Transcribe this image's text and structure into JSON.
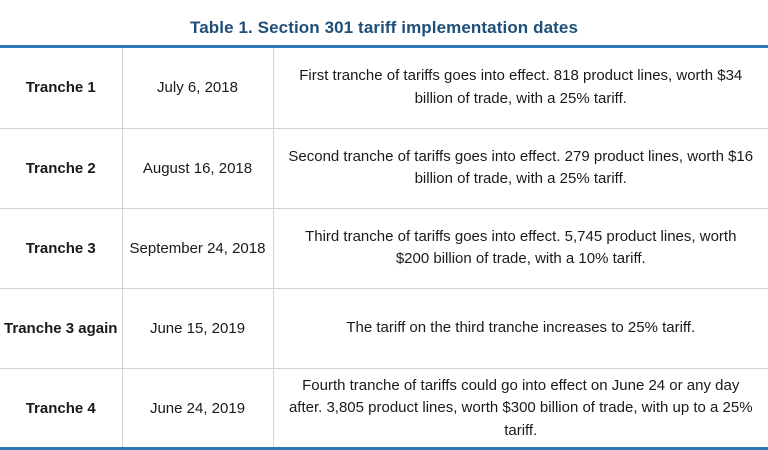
{
  "table": {
    "title": "Table 1. Section 301 tariff implementation dates",
    "colors": {
      "title_text": "#1F4E79",
      "tranche_label_text": "#2E75B6",
      "rule_blue": "#2E75B6",
      "grid_gray": "#D3D3D3"
    },
    "rows": [
      {
        "tranche": "Tranche 1",
        "date": "July 6, 2018",
        "description": "First tranche of tariffs goes into effect. 818 product lines, worth $34 billion of trade, with a 25% tariff."
      },
      {
        "tranche": "Tranche 2",
        "date": "August 16, 2018",
        "description": "Second tranche of tariffs goes into effect. 279 product lines, worth $16 billion of trade, with a 25% tariff."
      },
      {
        "tranche": "Tranche 3",
        "date": "September 24, 2018",
        "description": "Third tranche of tariffs goes into effect. 5,745 product lines, worth $200 billion of trade, with a 10% tariff."
      },
      {
        "tranche": "Tranche 3 again",
        "date": "June 15, 2019",
        "description": "The tariff on the third tranche increases to 25% tariff."
      },
      {
        "tranche": "Tranche 4",
        "date": "June 24, 2019",
        "description": "Fourth tranche of tariffs could go into effect on June 24 or any day after.  3,805 product lines, worth $300 billion of trade, with up to a 25% tariff."
      }
    ]
  }
}
